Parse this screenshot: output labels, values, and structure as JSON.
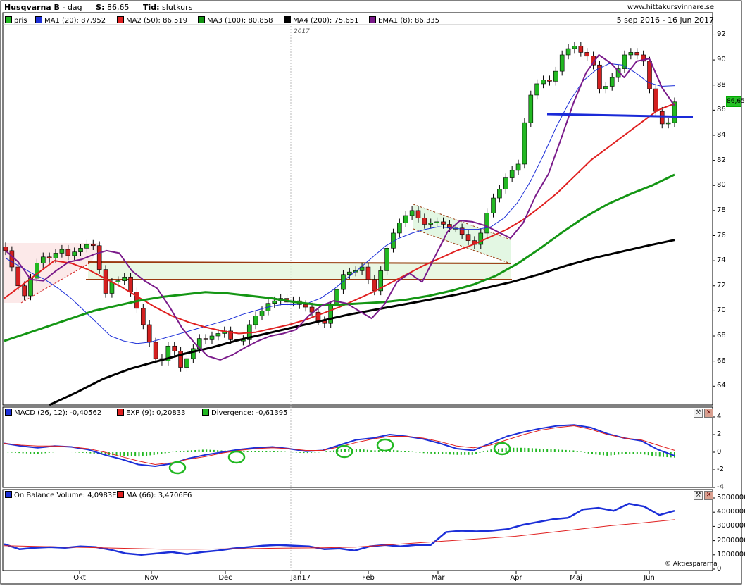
{
  "header": {
    "title": "Husqvarna B",
    "sep": "-",
    "interval": "dag",
    "s_label": "S:",
    "s_value": "86,65",
    "tid_label": "Tid:",
    "tid_value": "slutkurs",
    "site": "www.hittakursvinnare.se",
    "date_range": "5 sep 2016 - 16 jun 2017",
    "year_marker": "2017"
  },
  "price_panel": {
    "legend": [
      {
        "label": "pris",
        "color": "#22b822"
      },
      {
        "label": "MA1 (20): 87,952",
        "color": "#1c2fd8"
      },
      {
        "label": "MA2 (50): 86,519",
        "color": "#e02020"
      },
      {
        "label": "MA3 (100): 80,858",
        "color": "#149614"
      },
      {
        "label": "MA4 (200): 75,651",
        "color": "#000000"
      },
      {
        "label": "EMA1 (8): 86,335",
        "color": "#7a1a8a"
      }
    ],
    "last_price": "86,65"
  },
  "macd_panel": {
    "legend": [
      {
        "label": "MACD (26, 12): -0,40562",
        "color": "#1c2fd8"
      },
      {
        "label": "EXP (9): 0,20833",
        "color": "#e02020"
      },
      {
        "label": "Divergence: -0,61395",
        "color": "#22b822"
      }
    ]
  },
  "obv_panel": {
    "legend": [
      {
        "label": "On Balance Volume: 4,0983E6",
        "color": "#1c2fd8"
      },
      {
        "label": "MA (66): 3,4706E6",
        "color": "#e02020"
      }
    ]
  },
  "copyright": "© Aktiespararna",
  "colors": {
    "up": "#22b822",
    "down": "#d42020",
    "ma20": "#1c2fd8",
    "ma50": "#e02020",
    "ma100": "#149614",
    "ma200": "#000000",
    "ema8": "#7a1a8a",
    "support": "#9a3a10",
    "trendline": "#1a2ad8"
  },
  "chart_data": [
    {
      "type": "line",
      "title": "Husqvarna B",
      "x_ticks": [
        "Okt",
        "Nov",
        "Dec",
        "Jan17",
        "Feb",
        "Mar",
        "Apr",
        "Maj",
        "Jun"
      ],
      "y_ticks": [
        64,
        66,
        68,
        70,
        72,
        74,
        76,
        78,
        80,
        82,
        84,
        86,
        88,
        90,
        92
      ],
      "ylim": [
        62.5,
        92.7
      ],
      "series": [
        {
          "name": "pris",
          "values": [
            74.8,
            73.5,
            72.0,
            71.2,
            72.6,
            73.8,
            74.3,
            74.2,
            74.6,
            74.9,
            74.4,
            74.7,
            75.0,
            75.3,
            75.2,
            73.3,
            71.4,
            72.3,
            72.4,
            72.7,
            71.5,
            70.2,
            68.9,
            67.5,
            66.2,
            66.0,
            67.2,
            66.8,
            65.5,
            66.2,
            67.0,
            67.8,
            67.7,
            68.0,
            68.2,
            68.4,
            67.7,
            67.6,
            67.7,
            68.9,
            69.6,
            70.0,
            70.6,
            70.8,
            71.0,
            70.7,
            70.8,
            70.5,
            70.3,
            69.9,
            69.2,
            69.0,
            70.4,
            71.7,
            72.9,
            73.1,
            73.2,
            73.5,
            72.5,
            71.6,
            73.2,
            75.0,
            76.2,
            77.0,
            77.6,
            78.0,
            77.4,
            76.9,
            77.0,
            77.1,
            76.9,
            76.6,
            76.6,
            76.1,
            75.6,
            75.3,
            76.2,
            77.8,
            79.0,
            79.7,
            80.6,
            81.2,
            81.7,
            85.0,
            87.2,
            88.1,
            88.4,
            88.3,
            89.1,
            90.4,
            90.9,
            91.1,
            90.6,
            90.3,
            89.6,
            87.7,
            87.9,
            88.6,
            89.3,
            90.4,
            90.6,
            90.4,
            89.9,
            87.7,
            85.9,
            84.9,
            85.0,
            86.65
          ]
        },
        {
          "name": "MA1 (20)",
          "values": [
            74.2,
            73.6,
            73.0,
            72.5,
            71.8,
            71.0,
            70.0,
            69.0,
            68.0,
            67.6,
            67.4,
            67.5,
            67.8,
            68.1,
            68.4,
            68.7,
            69.0,
            69.3,
            69.7,
            70.0,
            70.3,
            70.5,
            70.5,
            70.6,
            71.0,
            71.7,
            72.6,
            73.4,
            74.3,
            75.2,
            75.8,
            76.2,
            76.5,
            76.7,
            76.6,
            76.5,
            76.5,
            76.7,
            77.4,
            78.6,
            80.3,
            82.4,
            84.7,
            86.7,
            88.3,
            89.2,
            89.7,
            89.6,
            89.0,
            88.2,
            87.9,
            87.952
          ]
        },
        {
          "name": "MA2 (50)",
          "values": [
            71.0,
            72.0,
            73.0,
            74.0,
            73.8,
            73.3,
            72.6,
            71.9,
            71.1,
            70.3,
            69.6,
            69.1,
            68.7,
            68.4,
            68.2,
            68.3,
            68.6,
            68.9,
            69.3,
            69.8,
            70.3,
            70.9,
            71.5,
            72.2,
            72.9,
            73.6,
            74.2,
            74.8,
            75.3,
            75.9,
            76.5,
            77.3,
            78.3,
            79.4,
            80.7,
            82.0,
            83.0,
            84.0,
            85.0,
            86.0,
            86.519
          ]
        },
        {
          "name": "MA3 (100)",
          "values": [
            67.6,
            68.2,
            68.8,
            69.4,
            70.0,
            70.4,
            70.8,
            71.1,
            71.3,
            71.5,
            71.4,
            71.2,
            71.0,
            70.7,
            70.5,
            70.5,
            70.6,
            70.7,
            70.9,
            71.2,
            71.6,
            72.1,
            72.8,
            73.8,
            75.0,
            76.3,
            77.5,
            78.5,
            79.3,
            80.0,
            80.858
          ]
        },
        {
          "name": "MA4 (200)",
          "values": [
            62.5,
            63.5,
            64.6,
            65.4,
            66.0,
            66.6,
            67.1,
            67.7,
            68.2,
            68.7,
            69.2,
            69.7,
            70.1,
            70.5,
            70.9,
            71.3,
            71.8,
            72.3,
            72.9,
            73.6,
            74.2,
            74.7,
            75.2,
            75.651
          ]
        },
        {
          "name": "EMA1 (8)",
          "values": [
            74.8,
            73.9,
            72.5,
            72.4,
            73.2,
            73.9,
            74.1,
            74.5,
            74.8,
            74.6,
            73.2,
            72.4,
            71.8,
            70.3,
            68.6,
            67.4,
            66.4,
            66.1,
            66.5,
            67.1,
            67.6,
            68.0,
            68.2,
            68.5,
            69.6,
            70.4,
            70.8,
            70.6,
            70.0,
            69.4,
            70.5,
            72.3,
            73.0,
            72.3,
            74.3,
            76.3,
            77.2,
            77.1,
            76.8,
            76.3,
            75.8,
            77.0,
            79.2,
            80.9,
            83.7,
            86.6,
            89.0,
            90.4,
            89.7,
            88.6,
            89.9,
            90.1,
            87.8,
            86.335
          ]
        }
      ]
    },
    {
      "type": "line",
      "title": "MACD (26, 12)",
      "y_ticks": [
        -4,
        -2,
        0,
        2,
        4
      ],
      "ylim": [
        -4,
        4
      ],
      "series": [
        {
          "name": "MACD (26, 12)",
          "values": [
            1.0,
            0.7,
            0.5,
            0.7,
            0.6,
            0.3,
            -0.3,
            -0.8,
            -1.4,
            -1.6,
            -1.3,
            -0.7,
            -0.3,
            0.0,
            0.3,
            0.5,
            0.6,
            0.4,
            0.1,
            0.2,
            0.8,
            1.4,
            1.6,
            2.0,
            1.8,
            1.5,
            1.0,
            0.4,
            0.2,
            1.0,
            1.8,
            2.3,
            2.7,
            3.0,
            3.1,
            2.8,
            2.1,
            1.6,
            1.3,
            0.3,
            -0.40562
          ]
        },
        {
          "name": "EXP (9)",
          "values": [
            1.0,
            0.8,
            0.7,
            0.7,
            0.6,
            0.4,
            0.0,
            -0.5,
            -1.0,
            -1.4,
            -1.2,
            -0.8,
            -0.5,
            -0.1,
            0.2,
            0.4,
            0.5,
            0.4,
            0.2,
            0.2,
            0.6,
            1.1,
            1.5,
            1.8,
            1.8,
            1.6,
            1.2,
            0.7,
            0.5,
            0.8,
            1.4,
            2.0,
            2.5,
            2.8,
            3.0,
            2.6,
            2.0,
            1.6,
            1.4,
            0.8,
            0.20833
          ]
        },
        {
          "name": "Divergence",
          "values": [
            0.0,
            -0.1,
            -0.2,
            0.0,
            0.0,
            -0.1,
            -0.3,
            -0.4,
            -0.5,
            -0.3,
            0.0,
            0.2,
            0.3,
            0.2,
            0.1,
            0.1,
            0.1,
            0.0,
            -0.1,
            0.0,
            0.3,
            0.4,
            0.2,
            0.3,
            0.1,
            -0.1,
            -0.2,
            -0.3,
            -0.3,
            0.3,
            0.5,
            0.5,
            0.4,
            0.3,
            0.2,
            -0.2,
            -0.4,
            -0.2,
            -0.2,
            -0.5,
            -0.61395
          ]
        }
      ]
    },
    {
      "type": "line",
      "title": "On Balance Volume",
      "y_ticks": [
        0,
        1000000,
        2000000,
        3000000,
        4000000,
        5000000
      ],
      "ylim": [
        0,
        5000000
      ],
      "series": [
        {
          "name": "On Balance Volume",
          "values": [
            1750000,
            1400000,
            1500000,
            1550000,
            1500000,
            1600000,
            1550000,
            1350000,
            1100000,
            1000000,
            1100000,
            1200000,
            1050000,
            1200000,
            1300000,
            1450000,
            1550000,
            1650000,
            1700000,
            1650000,
            1600000,
            1400000,
            1450000,
            1300000,
            1600000,
            1700000,
            1600000,
            1700000,
            1700000,
            2600000,
            2700000,
            2650000,
            2700000,
            2800000,
            3100000,
            3300000,
            3500000,
            3600000,
            4200000,
            4300000,
            4100000,
            4600000,
            4400000,
            3800000,
            4098300
          ]
        },
        {
          "name": "MA (66)",
          "values": [
            1650000,
            1600000,
            1550000,
            1500000,
            1450000,
            1400000,
            1400000,
            1420000,
            1450000,
            1480000,
            1500000,
            1550000,
            1700000,
            1850000,
            2000000,
            2150000,
            2300000,
            2550000,
            2800000,
            3050000,
            3250000,
            3470600
          ]
        }
      ]
    }
  ]
}
